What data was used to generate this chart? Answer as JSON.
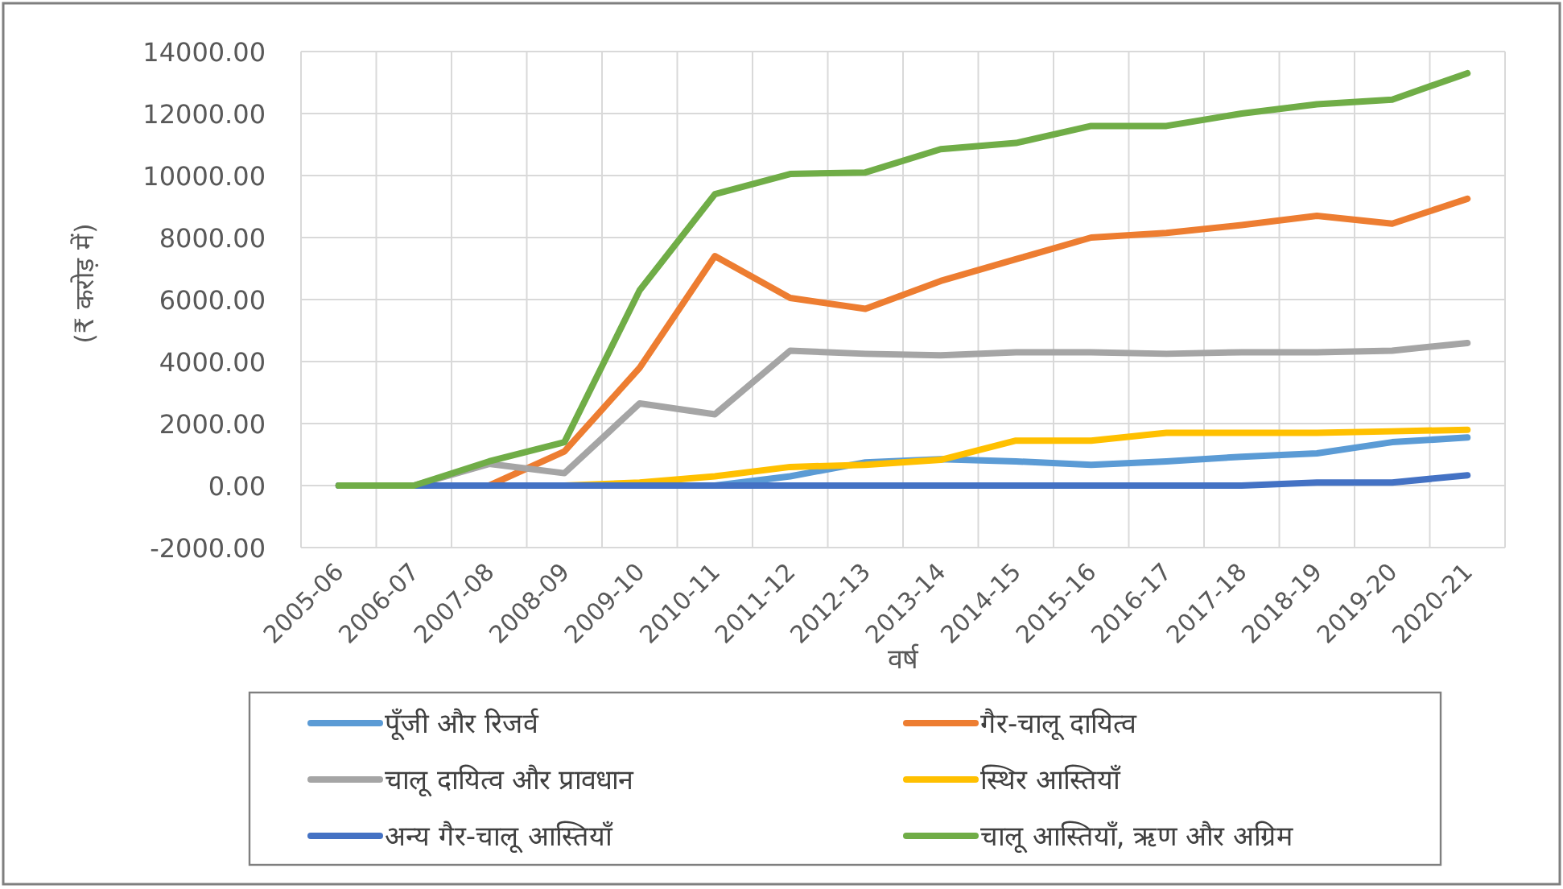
{
  "chart_data": {
    "type": "line",
    "xlabel": "वर्ष",
    "ylabel": "(₹ करोड़ में)",
    "categories": [
      "2005-06",
      "2006-07",
      "2007-08",
      "2008-09",
      "2009-10",
      "2010-11",
      "2011-12",
      "2012-13",
      "2013-14",
      "2014-15",
      "2015-16",
      "2016-17",
      "2017-18",
      "2018-19",
      "2019-20",
      "2020-21"
    ],
    "series": [
      {
        "name": "पूँजी और रिजर्व",
        "color": "#5b9bd5",
        "values": [
          0,
          0,
          0,
          0,
          0,
          0,
          300,
          750,
          850,
          780,
          670,
          780,
          930,
          1040,
          1400,
          1550
        ]
      },
      {
        "name": "गैर-चालू दायित्व",
        "color": "#ed7d31",
        "values": [
          0,
          0,
          0,
          1100,
          3800,
          7400,
          6050,
          5700,
          6600,
          7300,
          8000,
          8150,
          8400,
          8700,
          8450,
          9250
        ]
      },
      {
        "name": "चालू दायित्व और प्रावधान",
        "color": "#a5a5a5",
        "values": [
          0,
          0,
          700,
          400,
          2650,
          2300,
          4350,
          4250,
          4200,
          4300,
          4300,
          4250,
          4300,
          4300,
          4350,
          4600
        ]
      },
      {
        "name": "स्थिर आस्तियाँ",
        "color": "#ffc000",
        "values": [
          null,
          null,
          0,
          0,
          100,
          300,
          600,
          670,
          830,
          1450,
          1450,
          1700,
          1700,
          1700,
          1750,
          1800
        ]
      },
      {
        "name": "अन्य गैर-चालू आस्तियाँ",
        "color": "#4472c4",
        "values": [
          0,
          0,
          0,
          0,
          0,
          0,
          0,
          0,
          0,
          0,
          0,
          0,
          0,
          100,
          100,
          330
        ]
      },
      {
        "name": "चालू आस्तियाँ, ऋण और अग्रिम",
        "color": "#70ad47",
        "values": [
          0,
          0,
          780,
          1400,
          6300,
          9400,
          10050,
          10100,
          10850,
          11050,
          11600,
          11600,
          12000,
          12300,
          12450,
          13300
        ]
      }
    ],
    "ylim": [
      -2000,
      14000
    ],
    "yticks": [
      {
        "value": -2000,
        "label": "-2000.00"
      },
      {
        "value": 0,
        "label": "0.00"
      },
      {
        "value": 2000,
        "label": "2000.00"
      },
      {
        "value": 4000,
        "label": "4000.00"
      },
      {
        "value": 6000,
        "label": "6000.00"
      },
      {
        "value": 8000,
        "label": "8000.00"
      },
      {
        "value": 10000,
        "label": "10000.00"
      },
      {
        "value": 12000,
        "label": "12000.00"
      },
      {
        "value": 14000,
        "label": "14000.00"
      }
    ],
    "grid": true,
    "legend": "bottom",
    "marker": "none",
    "line_style": "solid"
  }
}
